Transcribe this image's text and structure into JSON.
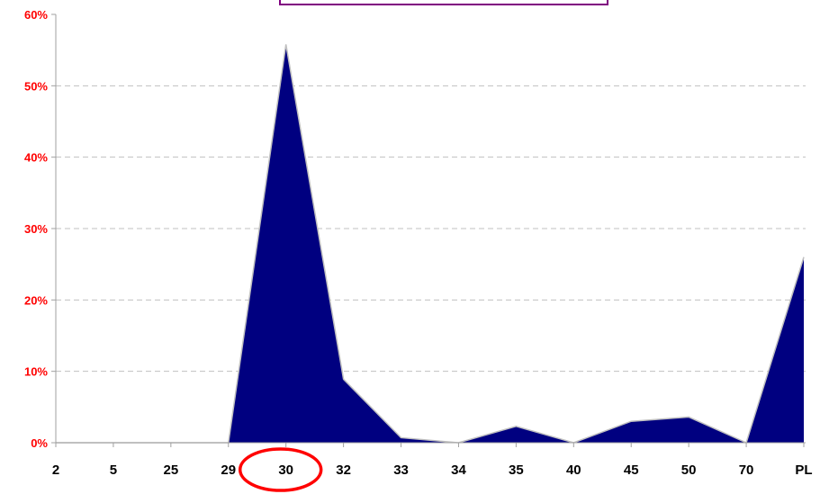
{
  "chart_data": {
    "type": "area",
    "categories": [
      "2",
      "5",
      "25",
      "29",
      "30",
      "32",
      "33",
      "34",
      "35",
      "40",
      "45",
      "50",
      "70",
      "PL"
    ],
    "series": [
      {
        "values": [
          0,
          0,
          0,
          0,
          55.8,
          8.9,
          0.7,
          0,
          2.3,
          0,
          3.0,
          3.6,
          0,
          26.0
        ]
      }
    ],
    "y_tick_labels": [
      "0%",
      "10%",
      "20%",
      "30%",
      "40%",
      "50%",
      "60%"
    ],
    "ylim": [
      0,
      60
    ],
    "grid": "horizontal-dashed",
    "highlighted_category": "30",
    "colors": {
      "fill": "#000080",
      "outline": "#c0c0c0",
      "y_ticks": "#ff0000",
      "x_ticks": "#000000",
      "highlight": "#ff0000",
      "title_box_border": "#800080",
      "grid": "#c0c0c0"
    }
  }
}
